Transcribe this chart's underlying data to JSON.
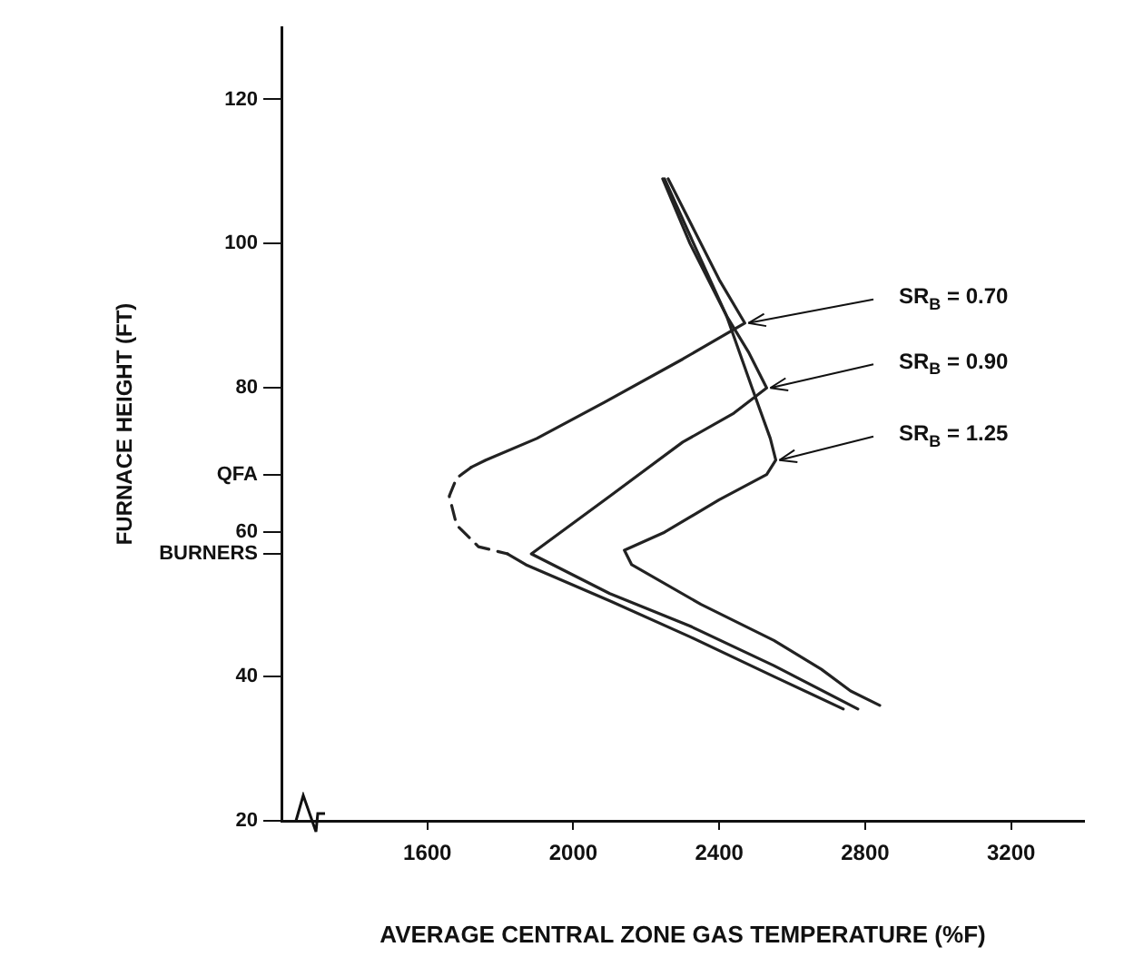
{
  "chart_data": {
    "type": "line",
    "xlabel": "AVERAGE CENTRAL ZONE GAS TEMPERATURE (%F)",
    "ylabel": "FURNACE HEIGHT (FT)",
    "xlim": [
      1200,
      3400
    ],
    "xticks": [
      1600,
      2000,
      2400,
      2800,
      3200
    ],
    "ylim": [
      20,
      130
    ],
    "yticks": [
      20,
      40,
      {
        "value": 57,
        "label": "BURNERS"
      },
      60,
      {
        "value": 68,
        "label": "QFA"
      },
      80,
      100,
      120
    ],
    "grid": false,
    "legend": false,
    "marker": "none",
    "line_style": "solid",
    "series": [
      {
        "color": "#222222",
        "x": [
          2260,
          2330,
          2400,
          2470,
          2300,
          2085,
          1900,
          1760,
          1720,
          null,
          1820,
          1870,
          2100,
          2320,
          2550,
          2740
        ],
        "values": [
          109,
          102,
          95,
          89,
          84,
          78,
          73,
          70,
          69,
          null,
          57,
          55.5,
          50.5,
          45.5,
          40,
          35.5
        ]
      },
      {
        "color": "#222222",
        "line_style": "dashed",
        "x": [
          1720,
          1680,
          1660,
          1680,
          1740,
          1820
        ],
        "values": [
          69,
          67.5,
          65,
          61,
          58,
          57
        ]
      },
      {
        "color": "#222222",
        "x": [
          2245,
          2320,
          2420,
          2480,
          2530,
          2440,
          2300,
          2100,
          1885,
          2100,
          2320,
          2550,
          2780
        ],
        "values": [
          109,
          100,
          90,
          85,
          80,
          76.5,
          72.5,
          65,
          57,
          51.5,
          47,
          41.5,
          35.5
        ]
      },
      {
        "color": "#222222",
        "x": [
          2250,
          2330,
          2420,
          2490,
          2540,
          2555,
          2530,
          2400,
          2250,
          2140,
          2160,
          2350,
          2550,
          2680,
          2760,
          2840
        ],
        "values": [
          109,
          100,
          90,
          80,
          73,
          70,
          68,
          64.5,
          60,
          57.5,
          55.5,
          50,
          45,
          41,
          38,
          36
        ]
      }
    ],
    "annotations": [
      {
        "text": "SR$_{B}$ = 0.70",
        "x": 2470,
        "y": 89
      },
      {
        "text": "SR$_{B}$ = 0.90",
        "x": 2530,
        "y": 80
      },
      {
        "text": "SR$_{B}$ = 1.25",
        "x": 2555,
        "y": 70
      }
    ]
  }
}
